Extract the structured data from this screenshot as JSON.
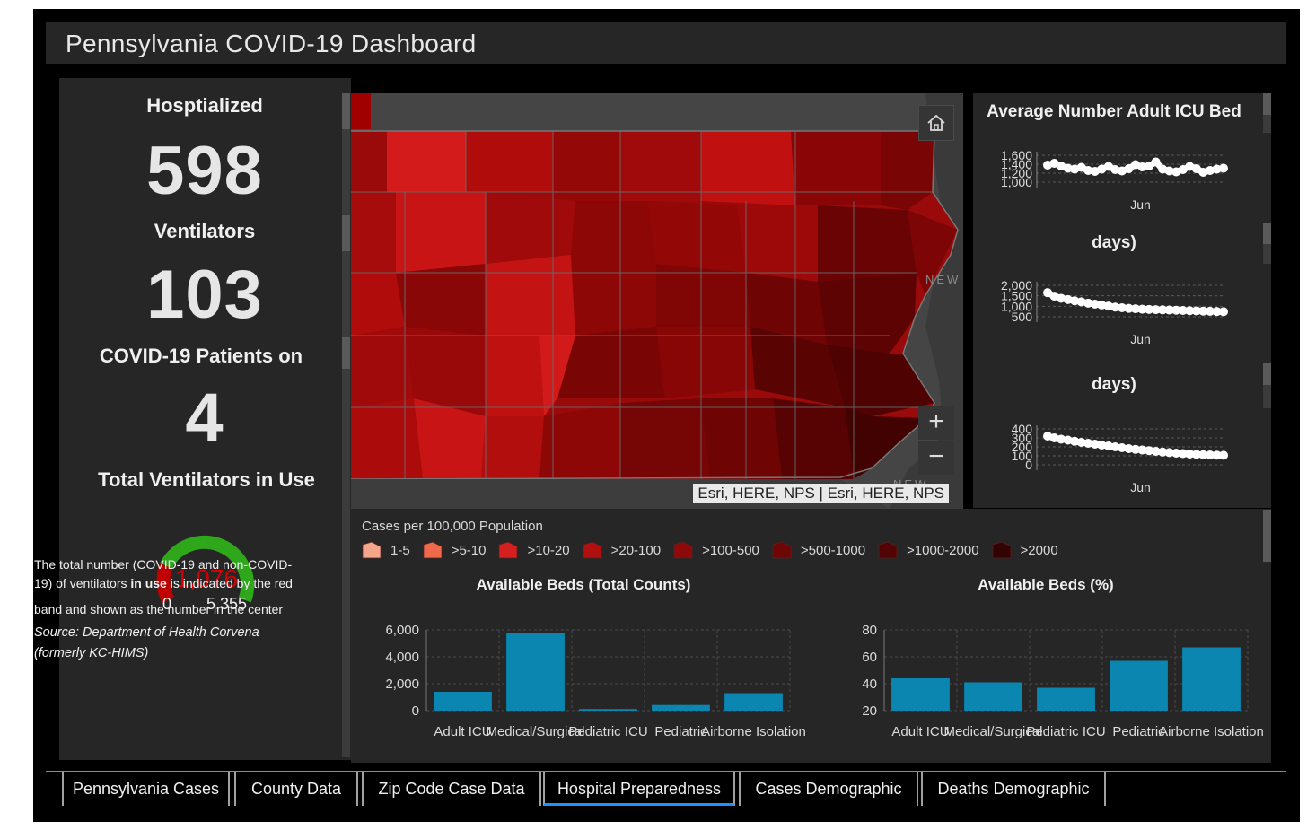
{
  "header": {
    "title": "Pennsylvania COVID-19 Dashboard"
  },
  "indicators": [
    {
      "title": "Hosptialized",
      "value": "598"
    },
    {
      "title": "Ventilators",
      "value": "103"
    },
    {
      "title": "COVID-19 Patients on",
      "value": "4"
    },
    {
      "title": "Total Ventilators in Use",
      "value": ""
    }
  ],
  "gauge": {
    "value": "1,076",
    "min": "0",
    "max": "5,355",
    "value_fraction": 0.2009,
    "colors": {
      "value": "#c00000",
      "rest": "#2ea81a"
    }
  },
  "description": {
    "line1": "The total number (COVID-19 and non-COVID-",
    "line2a": "19) of ventilators ",
    "line2b": "in use",
    "line2c": " is indicated by the red",
    "line3": "band and shown as the number in the center",
    "source1": "Source: Department of Health Corvena",
    "source2": "(formerly KC-HIMS)"
  },
  "map": {
    "attribution": "Esri, HERE, NPS | Esri, HERE, NPS",
    "label_east": "NEW",
    "label_southeast": "NEW JER",
    "home_icon": "home-icon",
    "zoom_in": "+",
    "zoom_out": "−"
  },
  "legend": {
    "title": "Cases per 100,000 Population",
    "items": [
      {
        "label": "1-5",
        "color": "#f4a58a"
      },
      {
        "label": ">5-10",
        "color": "#ef6a4a"
      },
      {
        "label": ">10-20",
        "color": "#d42020"
      },
      {
        "label": ">20-100",
        "color": "#b01010"
      },
      {
        "label": ">100-500",
        "color": "#8e0a0a"
      },
      {
        "label": ">500-1000",
        "color": "#6e0606"
      },
      {
        "label": ">1000-2000",
        "color": "#520404"
      },
      {
        "label": ">2000",
        "color": "#330202"
      }
    ]
  },
  "line_charts": {
    "c1": {
      "title": "Average Number Adult ICU Bed",
      "x_label": "Jun",
      "y_ticks": [
        "1,600",
        "1,400",
        "1,200",
        "1,000"
      ]
    },
    "c2": {
      "title": "days)",
      "x_label": "Jun",
      "y_ticks": [
        "2,000",
        "1,500",
        "1,000",
        "500"
      ]
    },
    "c3": {
      "title": "days)",
      "x_label": "Jun",
      "y_ticks": [
        "400",
        "300",
        "200",
        "100",
        "0"
      ]
    }
  },
  "chart_data": [
    {
      "type": "bar",
      "title": "Available Beds (Total Counts)",
      "categories": [
        "Adult ICU",
        "Medical/Surgical",
        "Pediatric ICU",
        "Pediatric",
        "Airborne Isolation"
      ],
      "values": [
        1400,
        5800,
        120,
        420,
        1300
      ],
      "ylim": [
        0,
        6000
      ],
      "y_ticks": [
        "6,000",
        "4,000",
        "2,000",
        "0"
      ],
      "bar_color": "#0b86b0",
      "grid": true
    },
    {
      "type": "bar",
      "title": "Available Beds (%)",
      "categories": [
        "Adult ICU",
        "Medical/Surgical",
        "Pediatric ICU",
        "Pediatric",
        "Airborne Isolation"
      ],
      "values": [
        44,
        41,
        37,
        57,
        67
      ],
      "ylim": [
        20,
        80
      ],
      "y_ticks": [
        "80",
        "60",
        "40",
        "20"
      ],
      "bar_color": "#0b86b0",
      "grid": true
    },
    {
      "type": "line",
      "title": "Average Number Adult ICU Bed",
      "x_tick": "Jun",
      "ylim": [
        1000,
        1600
      ],
      "values": [
        1380,
        1420,
        1360,
        1310,
        1290,
        1330,
        1260,
        1240,
        1290,
        1350,
        1280,
        1250,
        1300,
        1390,
        1340,
        1360,
        1450,
        1290,
        1250,
        1230,
        1280,
        1350,
        1300,
        1220,
        1260,
        1290,
        1310
      ]
    },
    {
      "type": "line",
      "title": "days)",
      "x_tick": "Jun",
      "ylim": [
        500,
        2000
      ],
      "values": [
        1650,
        1480,
        1380,
        1320,
        1260,
        1210,
        1150,
        1100,
        1060,
        1010,
        960,
        930,
        900,
        880,
        860,
        850,
        840,
        830,
        820,
        810,
        800,
        790,
        780,
        770,
        760,
        750,
        740
      ]
    },
    {
      "type": "line",
      "title": "days)",
      "x_tick": "Jun",
      "ylim": [
        0,
        400
      ],
      "values": [
        320,
        300,
        285,
        275,
        262,
        250,
        240,
        230,
        220,
        210,
        200,
        190,
        180,
        172,
        165,
        158,
        150,
        142,
        136,
        130,
        125,
        120,
        116,
        112,
        110,
        108,
        106
      ]
    }
  ],
  "tabs": [
    {
      "label": "Pennsylvania Cases",
      "active": false
    },
    {
      "label": "County Data",
      "active": false
    },
    {
      "label": "Zip Code Case Data",
      "active": false
    },
    {
      "label": "Hospital Preparedness",
      "active": true
    },
    {
      "label": "Cases Demographic",
      "active": false
    },
    {
      "label": "Deaths Demographic",
      "active": false
    }
  ]
}
